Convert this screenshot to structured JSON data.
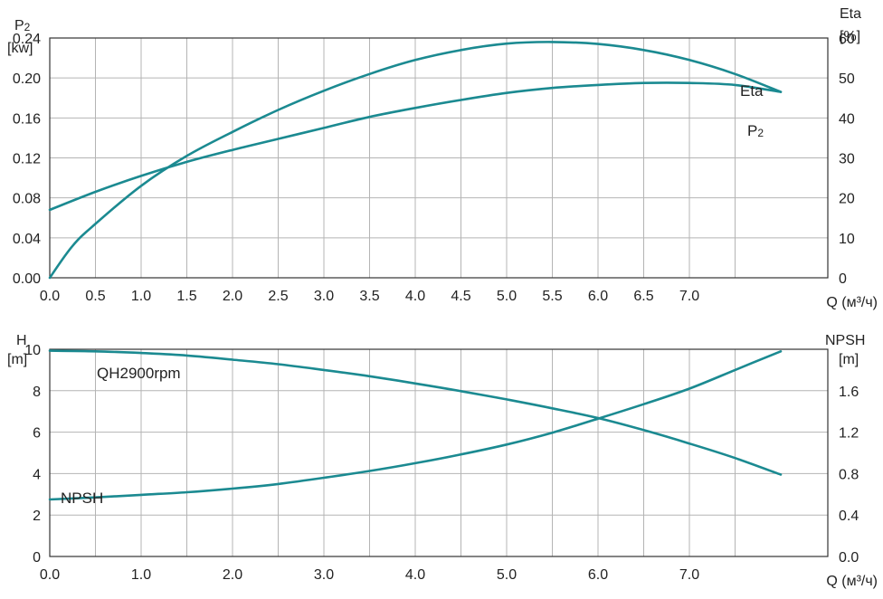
{
  "colors": {
    "curve": "#1b8a91",
    "grid": "#b4b4b4",
    "frame": "#333333",
    "text": "#222222"
  },
  "chart_data": [
    {
      "type": "line",
      "x_ticks": [
        {
          "value": 0.0,
          "label": "0.0"
        },
        {
          "value": 0.5,
          "label": "0.5"
        },
        {
          "value": 1.0,
          "label": "1.0"
        },
        {
          "value": 1.5,
          "label": "1.5"
        },
        {
          "value": 2.0,
          "label": "2.0"
        },
        {
          "value": 2.5,
          "label": "2.5"
        },
        {
          "value": 3.0,
          "label": "3.0"
        },
        {
          "value": 3.5,
          "label": "3.5"
        },
        {
          "value": 4.0,
          "label": "4.0"
        },
        {
          "value": 4.5,
          "label": "4.5"
        },
        {
          "value": 5.0,
          "label": "5.0"
        },
        {
          "value": 5.5,
          "label": "5.5"
        },
        {
          "value": 6.0,
          "label": "6.0"
        },
        {
          "value": 6.5,
          "label": "6.5"
        },
        {
          "value": 7.0,
          "label": "7.0"
        }
      ],
      "x_gridlines": [
        0.5,
        1.0,
        1.5,
        2.0,
        2.5,
        3.0,
        3.5,
        4.0,
        4.5,
        5.0,
        5.5,
        6.0,
        6.5,
        7.0,
        7.5
      ],
      "xlim": [
        0,
        8
      ],
      "xlabel": "Q (м³/ч)",
      "ylabel_left": [
        "P2",
        "[kw]"
      ],
      "ylim_left": [
        0,
        0.24
      ],
      "y_ticks_left": [
        "0.00",
        "0.04",
        "0.08",
        "0.12",
        "0.16",
        "0.20",
        "0.24"
      ],
      "ylabel_right": [
        "Eta",
        "[%]"
      ],
      "ylim_right": [
        0,
        60
      ],
      "y_ticks_right": [
        "0",
        "10",
        "20",
        "30",
        "40",
        "50",
        "60"
      ],
      "grid": true,
      "series": [
        {
          "name": "Eta",
          "axis": "right",
          "x": [
            0,
            0.25,
            0.5,
            1.0,
            1.5,
            2.0,
            2.5,
            3.0,
            3.5,
            4.0,
            4.5,
            5.0,
            5.5,
            6.0,
            6.5,
            7.0,
            7.5,
            8.0
          ],
          "y": [
            0,
            8,
            13.5,
            23,
            30.5,
            36.5,
            42,
            46.8,
            51,
            54.5,
            57,
            58.6,
            59,
            58.5,
            57,
            54.5,
            51,
            46.5
          ]
        },
        {
          "name": "P2",
          "axis": "left",
          "x": [
            0,
            0.5,
            1.0,
            1.5,
            2.0,
            2.5,
            3.0,
            3.5,
            4.0,
            4.5,
            5.0,
            5.5,
            6.0,
            6.5,
            7.0,
            7.5,
            8.0
          ],
          "y": [
            0.068,
            0.086,
            0.102,
            0.116,
            0.128,
            0.139,
            0.15,
            0.161,
            0.17,
            0.178,
            0.185,
            0.19,
            0.193,
            0.195,
            0.195,
            0.193,
            0.186
          ]
        }
      ],
      "label_texts": {
        "eta": "Eta",
        "p2_main": "P",
        "p2_sub": "2"
      }
    },
    {
      "type": "line",
      "x_ticks": [
        {
          "value": 0.0,
          "label": "0.0"
        },
        {
          "value": 1.0,
          "label": "1.0"
        },
        {
          "value": 2.0,
          "label": "2.0"
        },
        {
          "value": 3.0,
          "label": "3.0"
        },
        {
          "value": 4.0,
          "label": "4.0"
        },
        {
          "value": 5.0,
          "label": "5.0"
        },
        {
          "value": 6.0,
          "label": "6.0"
        },
        {
          "value": 7.0,
          "label": "7.0"
        }
      ],
      "x_gridlines": [
        0.5,
        1.0,
        1.5,
        2.0,
        2.5,
        3.0,
        3.5,
        4.0,
        4.5,
        5.0,
        5.5,
        6.0,
        6.5,
        7.0,
        7.5
      ],
      "xlim": [
        0,
        8
      ],
      "xlabel": "Q (м³/ч)",
      "ylabel_left": [
        "H",
        "[m]"
      ],
      "ylim_left": [
        0,
        10
      ],
      "y_ticks_left": [
        "0",
        "2",
        "4",
        "6",
        "8",
        "10"
      ],
      "ylabel_right": [
        "NPSH",
        "[m]"
      ],
      "ylim_right": [
        0,
        2.0
      ],
      "y_ticks_right": [
        "0.0",
        "0.4",
        "0.8",
        "1.2",
        "1.6"
      ],
      "grid": true,
      "series": [
        {
          "name": "QH2900rpm",
          "axis": "left",
          "x": [
            0,
            0.5,
            1.0,
            1.5,
            2.0,
            2.5,
            3.0,
            3.5,
            4.0,
            4.5,
            5.0,
            5.5,
            6.0,
            6.5,
            7.0,
            7.5,
            8.0
          ],
          "y": [
            9.93,
            9.9,
            9.82,
            9.7,
            9.5,
            9.28,
            9.0,
            8.7,
            8.35,
            7.98,
            7.58,
            7.15,
            6.68,
            6.1,
            5.45,
            4.75,
            3.95
          ]
        },
        {
          "name": "NPSH",
          "axis": "right",
          "x": [
            0,
            0.5,
            1.0,
            1.5,
            2.0,
            2.5,
            3.0,
            3.5,
            4.0,
            4.5,
            5.0,
            5.5,
            6.0,
            6.5,
            7.0,
            7.5,
            8.0
          ],
          "y": [
            0.55,
            0.57,
            0.595,
            0.62,
            0.655,
            0.7,
            0.76,
            0.825,
            0.9,
            0.985,
            1.08,
            1.195,
            1.33,
            1.47,
            1.62,
            1.8,
            1.98
          ]
        }
      ],
      "label_texts": {
        "qh": "QH2900rpm",
        "npsh": "NPSH"
      }
    }
  ]
}
